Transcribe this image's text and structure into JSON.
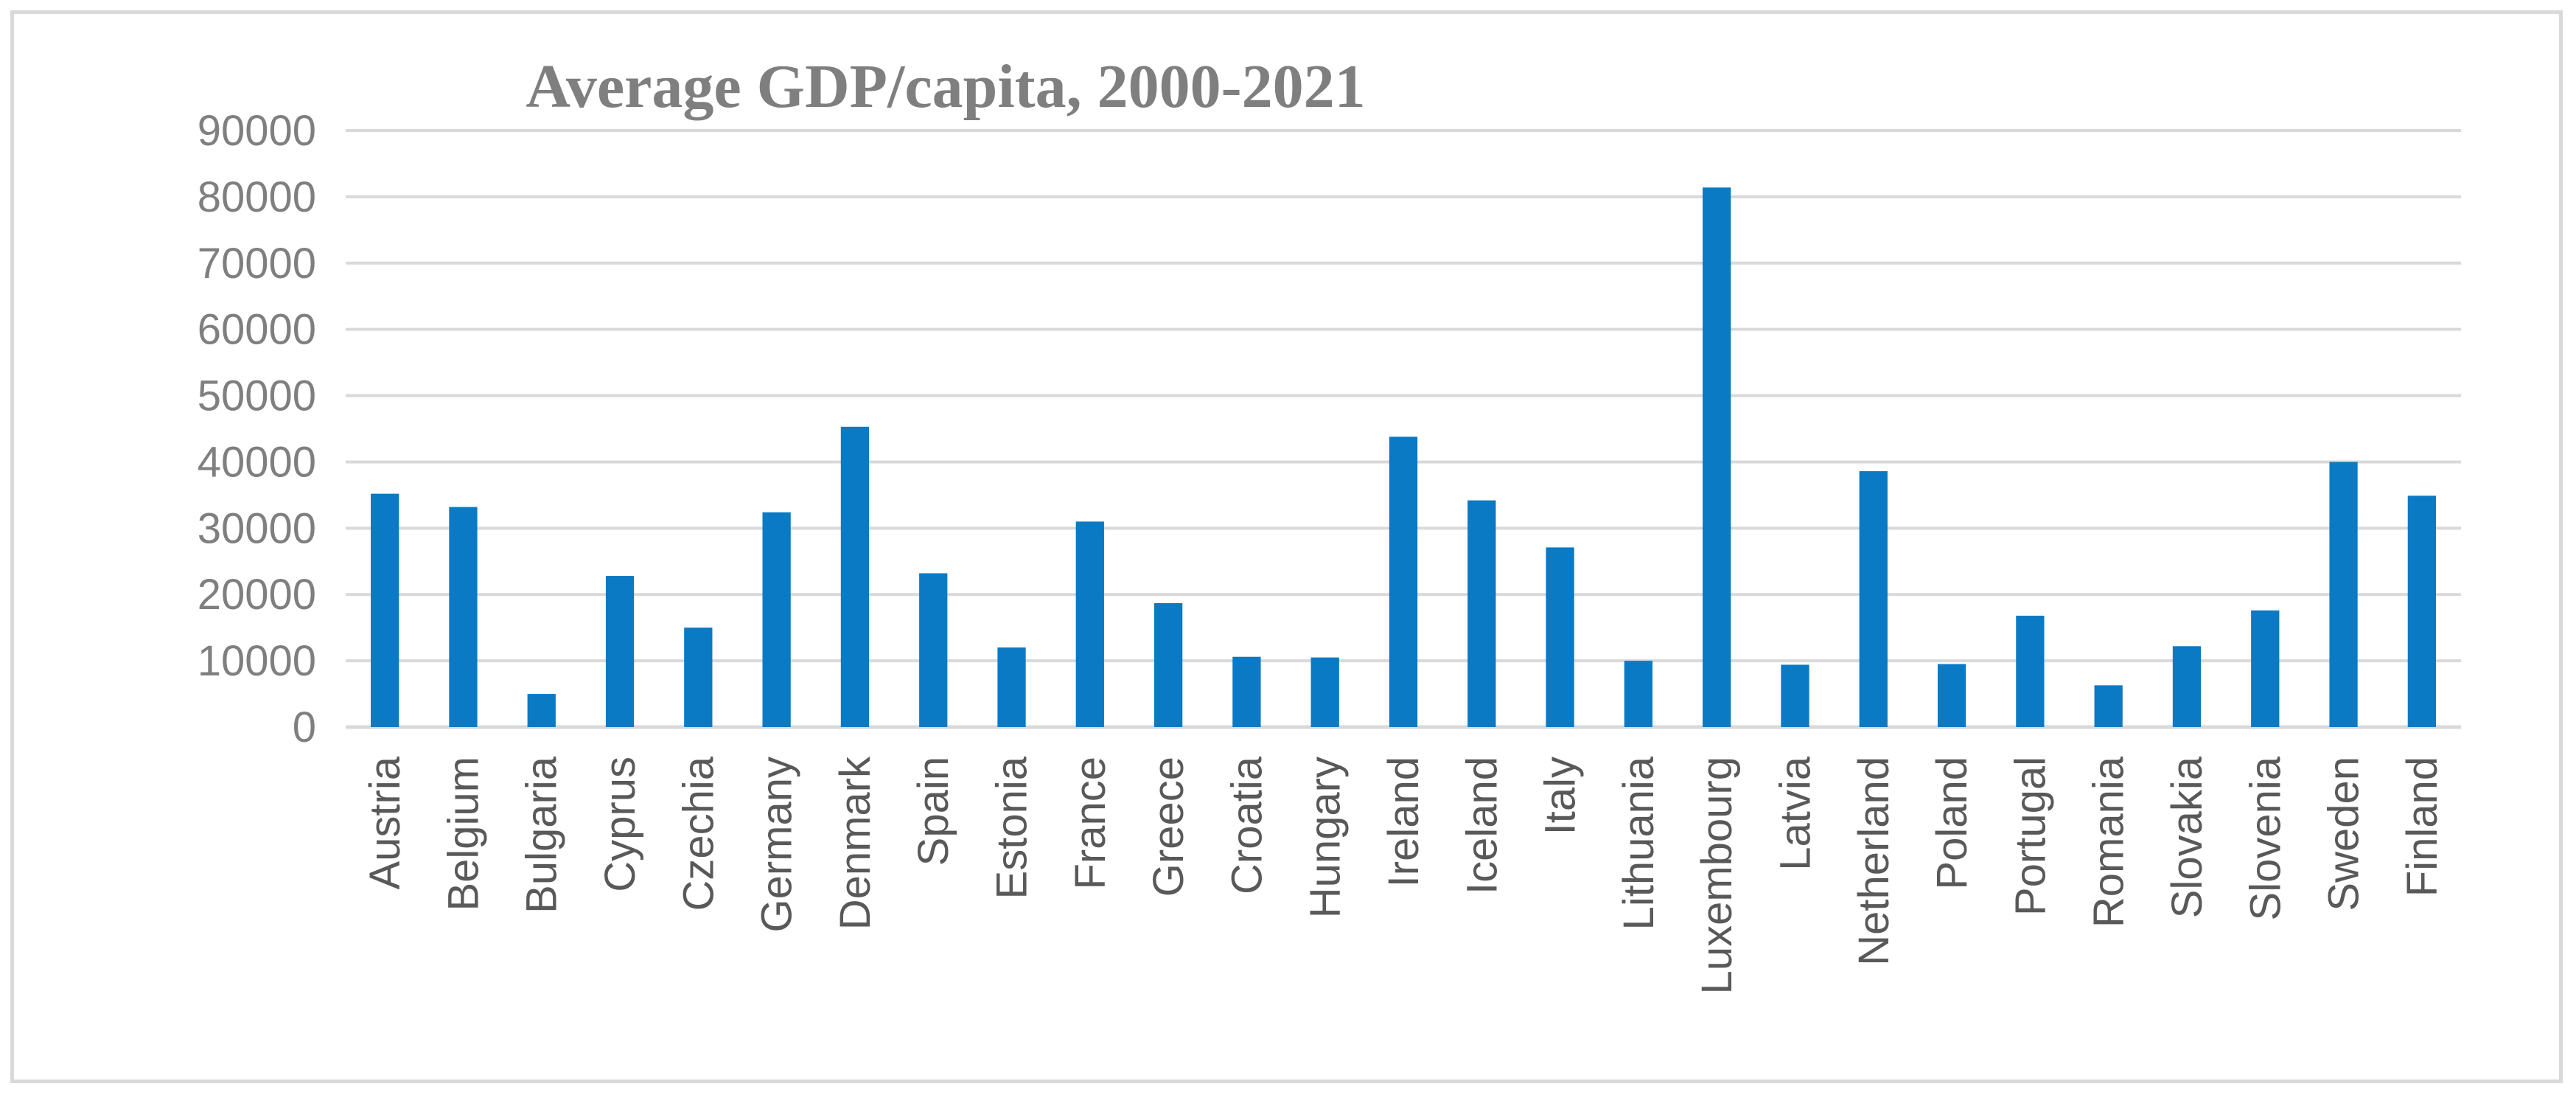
{
  "chart_data": {
    "type": "bar",
    "title": "Average GDP/capita, 2000-2021",
    "xlabel": "",
    "ylabel": "",
    "ylim": [
      0,
      90000
    ],
    "yticks": [
      0,
      10000,
      20000,
      30000,
      40000,
      50000,
      60000,
      70000,
      80000,
      90000
    ],
    "grid": true,
    "legend": "none",
    "categories": [
      "Austria",
      "Belgium",
      "Bulgaria",
      "Cyprus",
      "Czechia",
      "Germany",
      "Denmark",
      "Spain",
      "Estonia",
      "France",
      "Greece",
      "Croatia",
      "Hungary",
      "Ireland",
      "Iceland",
      "Italy",
      "Lithuania",
      "Luxembourg",
      "Latvia",
      "Netherland",
      "Poland",
      "Portugal",
      "Romania",
      "Slovakia",
      "Slovenia",
      "Sweden",
      "Finland"
    ],
    "values": [
      35200,
      33200,
      5000,
      22800,
      15000,
      32400,
      45300,
      23200,
      12000,
      31000,
      18700,
      10600,
      10500,
      43800,
      34200,
      27100,
      10000,
      81400,
      9400,
      38600,
      9500,
      16800,
      6300,
      12200,
      17600,
      40000,
      34900
    ],
    "colors": {
      "bar": "#0a7ac4",
      "grid": "#d9d9d9",
      "axis": "#d9d9d9",
      "title": "#7f7f7f",
      "tick_text": "#7f7f7f",
      "category_text": "#595959"
    }
  }
}
